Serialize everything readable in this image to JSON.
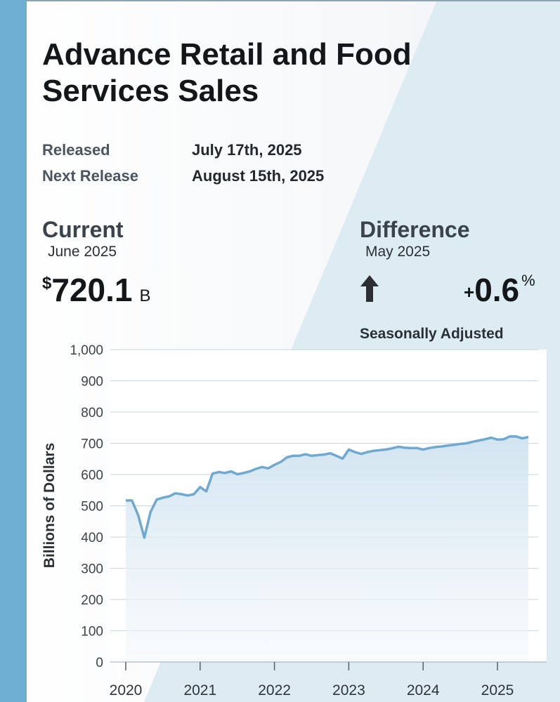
{
  "title": "Advance Retail and Food Services Sales",
  "released": {
    "label": "Released",
    "value": "July 17th, 2025"
  },
  "next_release": {
    "label": "Next Release",
    "value": "August 15th, 2025"
  },
  "current": {
    "heading": "Current",
    "period": "June 2025",
    "currency": "$",
    "value": "720.1",
    "unit": "B"
  },
  "difference": {
    "heading": "Difference",
    "period": "May 2025",
    "sign": "+",
    "value": "0.6",
    "unit": "%",
    "direction_icon": "up-arrow-icon"
  },
  "note": "Seasonally Adjusted",
  "colors": {
    "accent_bar": "#6eaed3",
    "line": "#6fa9d0",
    "fill_top": "#cfe3f0",
    "grid": "#c6d6e2"
  },
  "chart_data": {
    "type": "area",
    "title": "",
    "xlabel": "",
    "ylabel": "Billions of Dollars",
    "ylim": [
      0,
      1000
    ],
    "yticks": [
      0,
      100,
      200,
      300,
      400,
      500,
      600,
      700,
      800,
      900,
      1000
    ],
    "ytick_labels": [
      "0",
      "100",
      "200",
      "300",
      "400",
      "500",
      "600",
      "700",
      "800",
      "900",
      "1,000"
    ],
    "xticks": [
      2020,
      2021,
      2022,
      2023,
      2024,
      2025
    ],
    "xtick_labels": [
      "2020",
      "2021",
      "2022",
      "2023",
      "2024",
      "2025"
    ],
    "grid": true,
    "series": [
      {
        "x": [
          2020.0,
          2020.083,
          2020.167,
          2020.25,
          2020.333,
          2020.417,
          2020.5,
          2020.583,
          2020.667,
          2020.75,
          2020.833,
          2020.917,
          2021.0,
          2021.083,
          2021.167,
          2021.25,
          2021.333,
          2021.417,
          2021.5,
          2021.583,
          2021.667,
          2021.75,
          2021.833,
          2021.917,
          2022.0,
          2022.083,
          2022.167,
          2022.25,
          2022.333,
          2022.417,
          2022.5,
          2022.583,
          2022.667,
          2022.75,
          2022.833,
          2022.917,
          2023.0,
          2023.083,
          2023.167,
          2023.25,
          2023.333,
          2023.417,
          2023.5,
          2023.583,
          2023.667,
          2023.75,
          2023.833,
          2023.917,
          2024.0,
          2024.083,
          2024.167,
          2024.25,
          2024.333,
          2024.417,
          2024.5,
          2024.583,
          2024.667,
          2024.75,
          2024.833,
          2024.917,
          2025.0,
          2025.083,
          2025.167,
          2025.25,
          2025.333,
          2025.417
        ],
        "values": [
          517,
          517,
          470,
          398,
          480,
          520,
          526,
          530,
          540,
          537,
          533,
          537,
          560,
          546,
          603,
          608,
          605,
          610,
          601,
          605,
          610,
          618,
          624,
          620,
          631,
          640,
          655,
          660,
          660,
          665,
          660,
          662,
          664,
          668,
          660,
          651,
          680,
          672,
          666,
          672,
          676,
          678,
          680,
          684,
          689,
          686,
          685,
          685,
          680,
          685,
          688,
          690,
          693,
          695,
          698,
          700,
          705,
          709,
          713,
          718,
          712,
          713,
          722,
          722,
          716,
          720
        ]
      }
    ]
  }
}
